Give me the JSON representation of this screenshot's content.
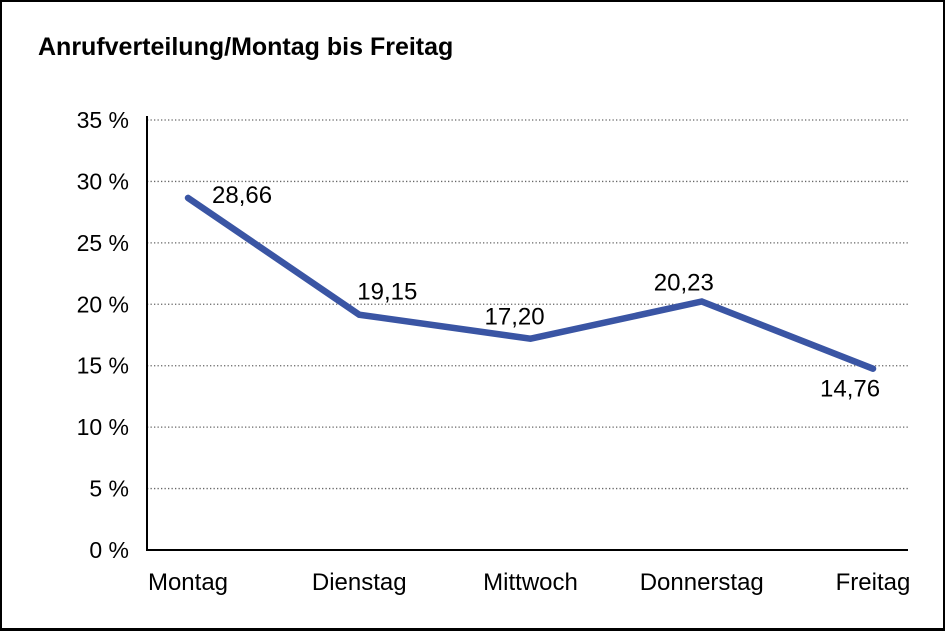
{
  "window": {
    "background": "#ffffff",
    "border_color": "#000000"
  },
  "chart_data": {
    "type": "line",
    "title": "Anrufverteilung/Montag bis Freitag",
    "categories": [
      "Montag",
      "Dienstag",
      "Mittwoch",
      "Donnerstag",
      "Freitag"
    ],
    "series": [
      {
        "values": [
          28.66,
          19.15,
          17.2,
          20.23,
          14.76
        ],
        "point_labels": [
          "28,66",
          "19,15",
          "17,20",
          "20,23",
          "14,76"
        ],
        "color": "#3A55A4"
      }
    ],
    "xlabel": "",
    "ylabel": "",
    "ylim": [
      0,
      35
    ],
    "y_tick_step": 5,
    "y_tick_labels": [
      "0 %",
      "5 %",
      "10 %",
      "15 %",
      "20 %",
      "25 %",
      "30 %",
      "35 %"
    ],
    "grid": "horizontal-dotted",
    "grid_color": "#666666",
    "axis_color": "#000000",
    "legend": "none"
  }
}
